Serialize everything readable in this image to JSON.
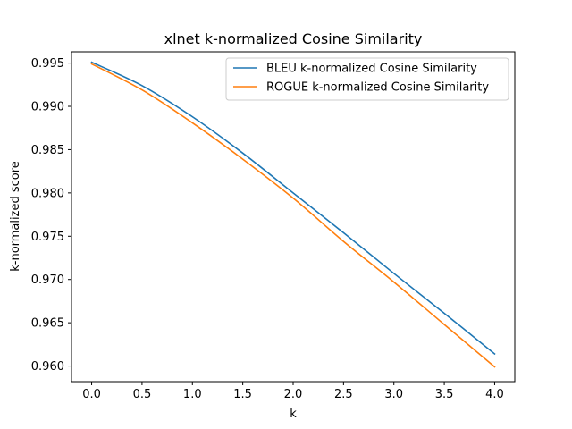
{
  "chart_data": {
    "type": "line",
    "title": "xlnet k-normalized Cosine Similarity",
    "xlabel": "k",
    "ylabel": "k-normalized score",
    "xlim": [
      -0.2,
      4.2
    ],
    "ylim": [
      0.9582,
      0.9963
    ],
    "x_ticks": [
      0.0,
      0.5,
      1.0,
      1.5,
      2.0,
      2.5,
      3.0,
      3.5,
      4.0
    ],
    "x_tick_labels": [
      "0.0",
      "0.5",
      "1.0",
      "1.5",
      "2.0",
      "2.5",
      "3.0",
      "3.5",
      "4.0"
    ],
    "y_ticks": [
      0.96,
      0.965,
      0.97,
      0.975,
      0.98,
      0.985,
      0.99,
      0.995
    ],
    "y_tick_labels": [
      "0.960",
      "0.965",
      "0.970",
      "0.975",
      "0.980",
      "0.985",
      "0.990",
      "0.995"
    ],
    "grid": false,
    "legend_position": "top-right",
    "x": [
      0.0,
      0.5,
      1.0,
      1.5,
      2.0,
      2.5,
      3.0,
      3.5,
      4.0
    ],
    "series": [
      {
        "name": "BLEU k-normalized Cosine Similarity",
        "color": "#1f77b4",
        "values": [
          0.9951,
          0.9924,
          0.9888,
          0.9846,
          0.98,
          0.9754,
          0.9707,
          0.9661,
          0.9614
        ]
      },
      {
        "name": "ROGUE k-normalized Cosine Similarity",
        "color": "#ff7f0e",
        "values": [
          0.9949,
          0.9919,
          0.9881,
          0.9839,
          0.9794,
          0.9744,
          0.9697,
          0.9648,
          0.9599
        ]
      }
    ]
  }
}
